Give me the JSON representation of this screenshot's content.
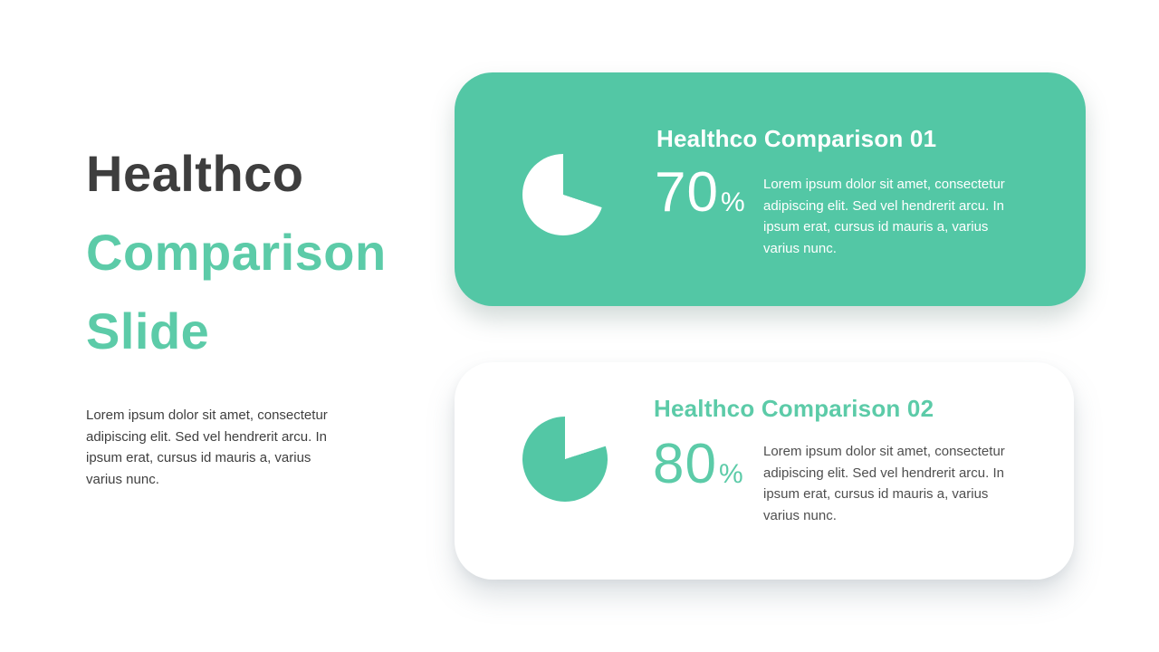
{
  "colors": {
    "accent_teal": "#53C7A5",
    "accent_teal_text": "#5CCBA8",
    "title_dark": "#3E3E3E",
    "body_gray": "#4F4F4F",
    "white": "#FFFFFF"
  },
  "slide": {
    "title_line1": "Healthco",
    "title_line2": "Comparison",
    "title_line3": "Slide",
    "description": "Lorem ipsum dolor sit amet, consectetur adipiscing elit. Sed vel hendrerit arcu. In ipsum erat, cursus id mauris a, varius varius nunc."
  },
  "cards": [
    {
      "title": "Healthco Comparison 01",
      "percent_value": "70",
      "percent_sign": "%",
      "pie_percent": 70,
      "icon": "pie-chart-icon",
      "icon_color": "#FFFFFF",
      "description": "Lorem ipsum dolor sit amet, consectetur adipiscing elit. Sed vel hendrerit arcu. In ipsum erat, cursus id mauris a, varius varius nunc."
    },
    {
      "title": "Healthco Comparison 02",
      "percent_value": "80",
      "percent_sign": "%",
      "pie_percent": 80,
      "icon": "pie-chart-icon",
      "icon_color": "#53C7A5",
      "description": "Lorem ipsum dolor sit amet, consectetur adipiscing elit. Sed vel hendrerit arcu. In ipsum erat, cursus id mauris a, varius varius nunc."
    }
  ]
}
